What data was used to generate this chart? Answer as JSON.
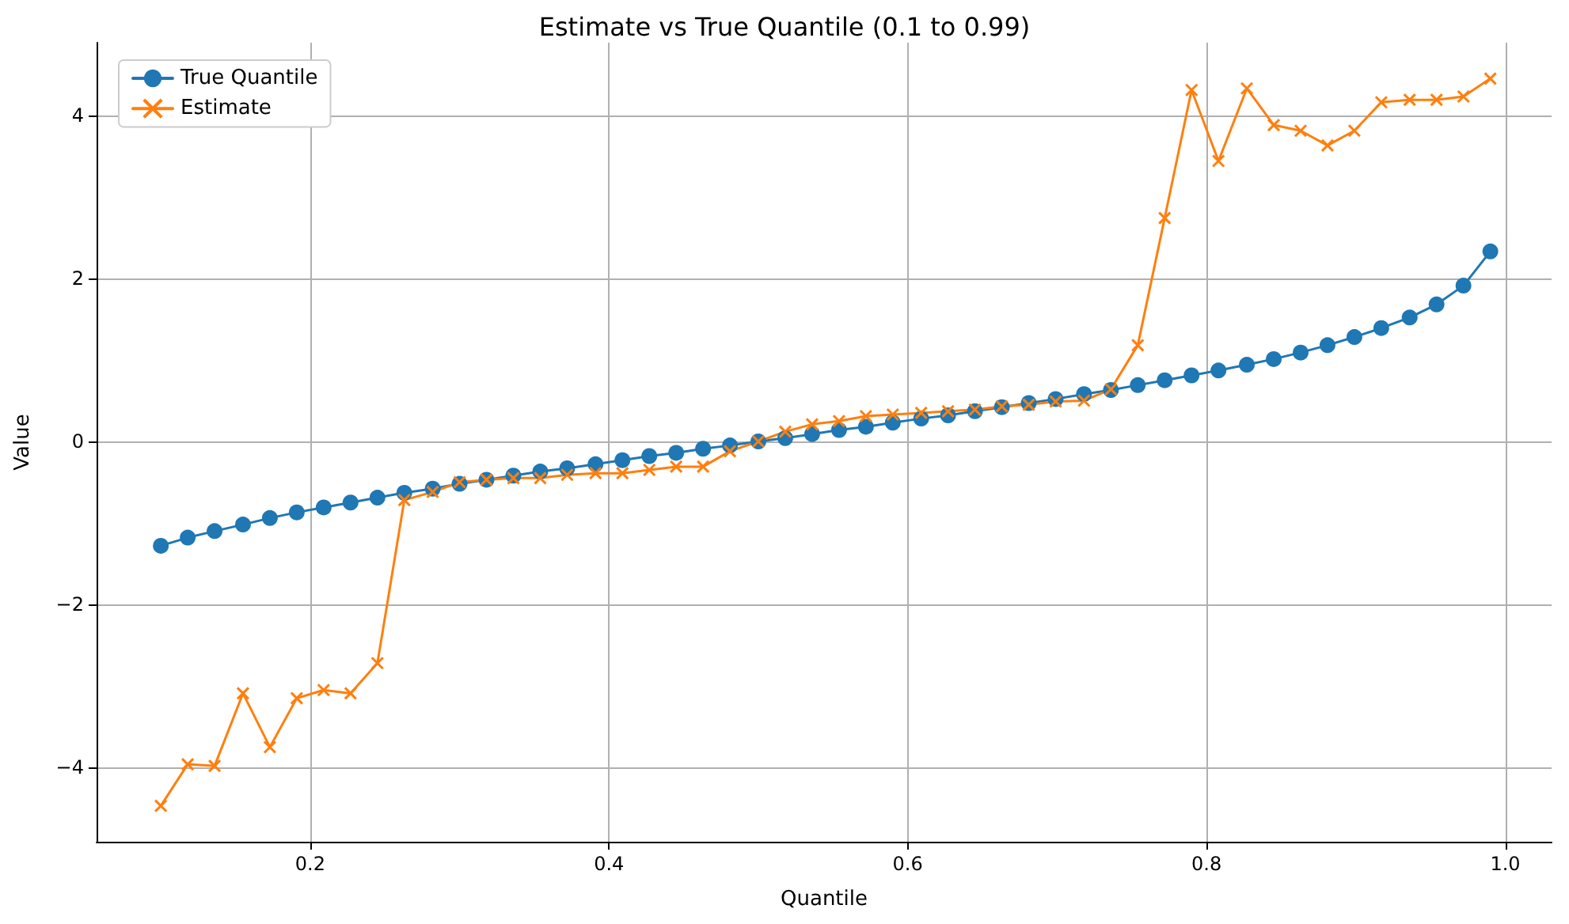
{
  "chart_data": {
    "type": "line",
    "title": "Estimate vs True Quantile (0.1 to 0.99)",
    "xlabel": "Quantile",
    "ylabel": "Value",
    "x": [
      0.1,
      0.118,
      0.136,
      0.155,
      0.173,
      0.191,
      0.209,
      0.227,
      0.245,
      0.263,
      0.282,
      0.3,
      0.318,
      0.336,
      0.354,
      0.372,
      0.391,
      0.409,
      0.427,
      0.445,
      0.463,
      0.481,
      0.5,
      0.518,
      0.536,
      0.554,
      0.572,
      0.59,
      0.609,
      0.627,
      0.645,
      0.663,
      0.681,
      0.699,
      0.718,
      0.736,
      0.754,
      0.772,
      0.79,
      0.808,
      0.827,
      0.845,
      0.863,
      0.881,
      0.899,
      0.917,
      0.936,
      0.954,
      0.972,
      0.99
    ],
    "series": [
      {
        "name": "True Quantile",
        "color": "#1f77b4",
        "marker": "circle",
        "values": [
          -1.28,
          -1.18,
          -1.1,
          -1.02,
          -0.94,
          -0.87,
          -0.81,
          -0.75,
          -0.69,
          -0.63,
          -0.58,
          -0.52,
          -0.47,
          -0.42,
          -0.37,
          -0.33,
          -0.28,
          -0.23,
          -0.18,
          -0.14,
          -0.09,
          -0.05,
          0.0,
          0.04,
          0.09,
          0.14,
          0.18,
          0.23,
          0.28,
          0.32,
          0.37,
          0.42,
          0.47,
          0.52,
          0.58,
          0.63,
          0.69,
          0.75,
          0.81,
          0.87,
          0.94,
          1.01,
          1.09,
          1.18,
          1.28,
          1.39,
          1.52,
          1.68,
          1.91,
          2.33
        ]
      },
      {
        "name": "Estimate",
        "color": "#ff7f0e",
        "marker": "cross",
        "values": [
          -4.47,
          -3.96,
          -3.98,
          -3.09,
          -3.75,
          -3.15,
          -3.05,
          -3.09,
          -2.72,
          -0.72,
          -0.62,
          -0.5,
          -0.47,
          -0.45,
          -0.45,
          -0.41,
          -0.39,
          -0.39,
          -0.35,
          -0.31,
          -0.31,
          -0.12,
          0.0,
          0.12,
          0.21,
          0.25,
          0.31,
          0.33,
          0.35,
          0.37,
          0.39,
          0.43,
          0.45,
          0.49,
          0.5,
          0.64,
          1.18,
          2.74,
          4.31,
          3.44,
          4.33,
          3.88,
          3.81,
          3.63,
          3.81,
          4.16,
          4.19,
          4.19,
          4.23,
          4.45
        ]
      }
    ],
    "xlim": [
      0.057,
      1.031
    ],
    "xticks": [
      0.2,
      0.4,
      0.6,
      0.8,
      {
        "value": 1,
        "label": "1.0"
      }
    ],
    "ylim": [
      -4.91,
      4.89
    ],
    "yticks": [
      -4,
      -2,
      0,
      2,
      4
    ],
    "grid": true,
    "legend": "top left",
    "line_style": "solid"
  }
}
